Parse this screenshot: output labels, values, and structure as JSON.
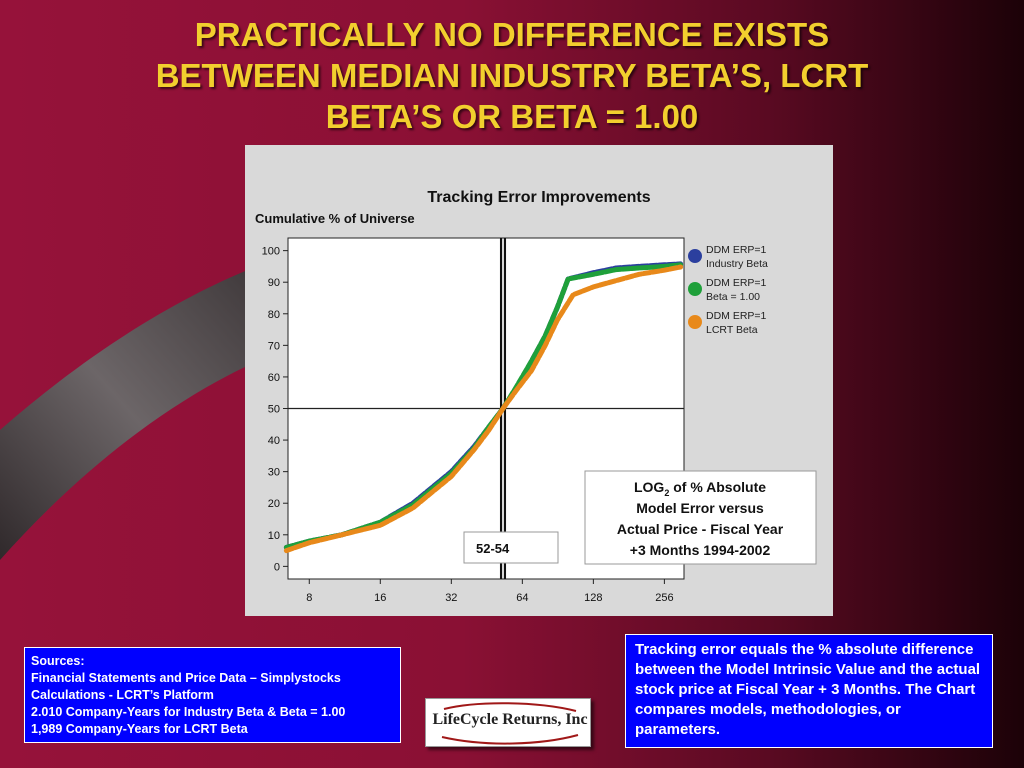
{
  "title_lines": [
    "PRACTICALLY NO DIFFERENCE EXISTS",
    "BETWEEN MEDIAN INDUSTRY BETA’S, LCRT",
    "BETA’S OR BETA = 1.00"
  ],
  "colors": {
    "title": "#f2cf2e",
    "box_bg": "#0000ff",
    "series_blue": "#2b3f9e",
    "series_green": "#1fa03a",
    "series_orange": "#e8891a"
  },
  "chart_data": {
    "type": "line",
    "title": "Tracking Error Improvements",
    "ylabel": "Cumulative % of Universe",
    "xlabel": "",
    "x_scale": "log2",
    "xlim": [
      6.5,
      310
    ],
    "ylim": [
      -4,
      104
    ],
    "x_ticks": [
      "8",
      "16",
      "32",
      "64",
      "128",
      "256"
    ],
    "y_ticks": [
      "0",
      "10",
      "20",
      "30",
      "40",
      "50",
      "60",
      "70",
      "80",
      "90",
      "100"
    ],
    "legend_position": "right",
    "reference_lines": {
      "y": 50,
      "x_band": "52-54"
    },
    "series": [
      {
        "name": "DDM ERP=1 Industry Beta",
        "color": "#2b3f9e",
        "points": [
          [
            6.4,
            6
          ],
          [
            8,
            8
          ],
          [
            11,
            10
          ],
          [
            16,
            14
          ],
          [
            22,
            20
          ],
          [
            32,
            30
          ],
          [
            40,
            38
          ],
          [
            46,
            44
          ],
          [
            53,
            50
          ],
          [
            60,
            56
          ],
          [
            70,
            65
          ],
          [
            80,
            73
          ],
          [
            90,
            82
          ],
          [
            100,
            91
          ],
          [
            128,
            93
          ],
          [
            160,
            94.5
          ],
          [
            200,
            95
          ],
          [
            256,
            95.5
          ],
          [
            300,
            95.8
          ]
        ]
      },
      {
        "name": "DDM ERP=1 Beta = 1.00",
        "color": "#1fa03a",
        "points": [
          [
            6.4,
            6
          ],
          [
            8,
            8
          ],
          [
            11,
            10
          ],
          [
            16,
            14
          ],
          [
            22,
            19.5
          ],
          [
            32,
            29.5
          ],
          [
            40,
            37.5
          ],
          [
            46,
            44
          ],
          [
            53,
            50
          ],
          [
            60,
            56.5
          ],
          [
            70,
            65
          ],
          [
            80,
            73
          ],
          [
            90,
            82
          ],
          [
            100,
            91
          ],
          [
            128,
            92.5
          ],
          [
            160,
            94
          ],
          [
            200,
            94.5
          ],
          [
            256,
            95
          ],
          [
            300,
            95.5
          ]
        ]
      },
      {
        "name": "DDM ERP=1 LCRT Beta",
        "color": "#e8891a",
        "points": [
          [
            6.4,
            5
          ],
          [
            8,
            7.5
          ],
          [
            11,
            10
          ],
          [
            16,
            13
          ],
          [
            22,
            18.5
          ],
          [
            32,
            28.5
          ],
          [
            40,
            37
          ],
          [
            46,
            43
          ],
          [
            53,
            50
          ],
          [
            60,
            55.5
          ],
          [
            70,
            62
          ],
          [
            80,
            70
          ],
          [
            90,
            78
          ],
          [
            105,
            86
          ],
          [
            128,
            88.5
          ],
          [
            160,
            90.5
          ],
          [
            200,
            92.5
          ],
          [
            256,
            93.8
          ],
          [
            300,
            94.8
          ]
        ]
      }
    ],
    "annotations": [
      "52-54",
      "LOG2 of % Absolute Model Error versus Actual Price - Fiscal Year +3 Months 1994-2002"
    ]
  },
  "legend": [
    {
      "line1": "DDM ERP=1",
      "line2": "Industry Beta",
      "color": "#2b3f9e"
    },
    {
      "line1": "DDM ERP=1",
      "line2": "Beta = 1.00",
      "color": "#1fa03a"
    },
    {
      "line1": "DDM ERP=1",
      "line2": "LCRT Beta",
      "color": "#e8891a"
    }
  ],
  "range_label": "52-54",
  "log_box": {
    "line1_pre": "LOG",
    "line1_sub": "2",
    "line1_post": " of % Absolute",
    "line2": "Model Error versus",
    "line3": "Actual Price - Fiscal Year",
    "line4": "+3 Months 1994-2002"
  },
  "sources_lines": [
    "Sources:",
    "Financial Statements and Price Data – Simplystocks",
    "Calculations - LCRT’s Platform",
    "2.010 Company-Years for Industry Beta & Beta = 1.00",
    "1,989 Company-Years for LCRT Beta"
  ],
  "logo_text": "LifeCycle Returns, Inc",
  "note_text": "Tracking error equals the % absolute difference between the Model Intrinsic Value and the actual stock price at Fiscal Year + 3 Months. The Chart compares models, methodologies, or parameters."
}
